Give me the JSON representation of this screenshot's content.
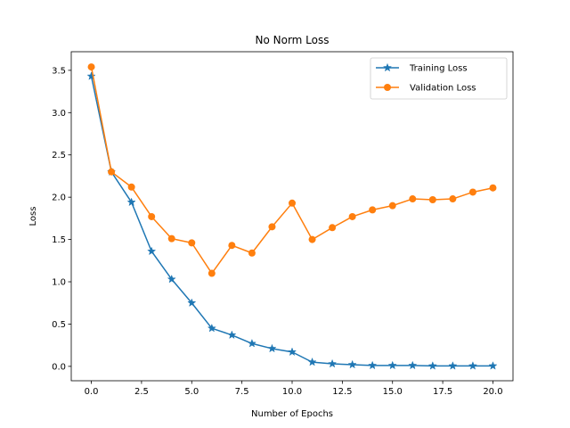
{
  "chart_data": {
    "type": "line",
    "title": "No Norm Loss",
    "xlabel": "Number of Epochs",
    "ylabel": "Loss",
    "xlim": [
      -1,
      21
    ],
    "ylim": [
      -0.17,
      3.72
    ],
    "xticks": [
      0,
      2.5,
      5,
      7.5,
      10,
      12.5,
      15,
      17.5,
      20
    ],
    "xtick_labels": [
      "0.0",
      "2.5",
      "5.0",
      "7.5",
      "10.0",
      "12.5",
      "15.0",
      "17.5",
      "20.0"
    ],
    "yticks": [
      0,
      0.5,
      1,
      1.5,
      2,
      2.5,
      3,
      3.5
    ],
    "ytick_labels": [
      "0.0",
      "0.5",
      "1.0",
      "1.5",
      "2.0",
      "2.5",
      "3.0",
      "3.5"
    ],
    "grid": false,
    "legend_position": "top-right",
    "x": [
      0,
      1,
      2,
      3,
      4,
      5,
      6,
      7,
      8,
      9,
      10,
      11,
      12,
      13,
      14,
      15,
      16,
      17,
      18,
      19,
      20
    ],
    "series": [
      {
        "name": "Training Loss",
        "color": "#1f77b4",
        "marker": "star",
        "values": [
          3.43,
          2.3,
          1.94,
          1.36,
          1.03,
          0.75,
          0.45,
          0.37,
          0.27,
          0.21,
          0.17,
          0.05,
          0.03,
          0.02,
          0.01,
          0.01,
          0.01,
          0.005,
          0.005,
          0.005,
          0.005
        ]
      },
      {
        "name": "Validation Loss",
        "color": "#ff7f0e",
        "marker": "circle",
        "values": [
          3.54,
          2.3,
          2.12,
          1.77,
          1.51,
          1.46,
          1.1,
          1.43,
          1.34,
          1.65,
          1.93,
          1.5,
          1.64,
          1.77,
          1.85,
          1.9,
          1.98,
          1.97,
          1.98,
          2.06,
          2.11
        ]
      }
    ]
  }
}
